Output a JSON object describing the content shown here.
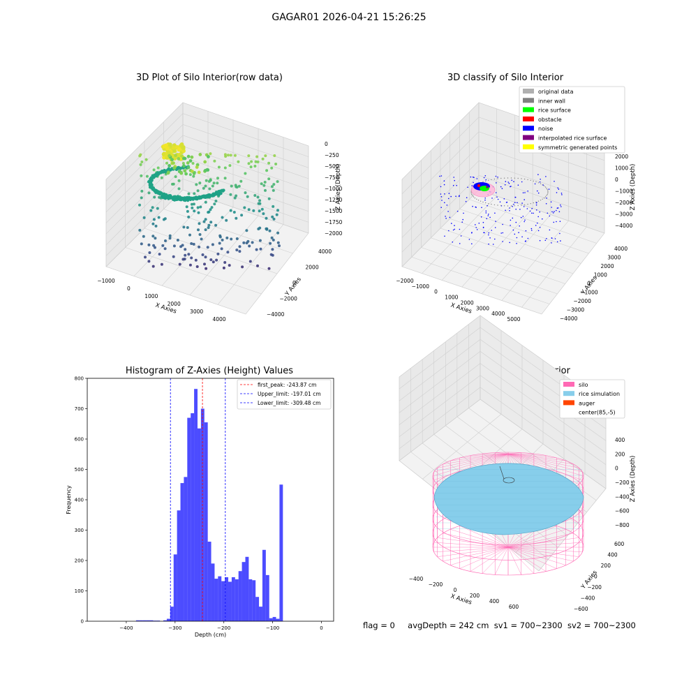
{
  "figure": {
    "suptitle": "GAGAR01 2026-04-21 15:26:25"
  },
  "panels": {
    "raw": {
      "title": "3D Plot of Silo Interior(row data)",
      "xlabel": "X Axies",
      "ylabel": "Y Axies",
      "zlabel": "Z Axies (Depth)",
      "xticks": [
        "−1000",
        "0",
        "1000",
        "2000",
        "3000",
        "4000"
      ],
      "yticks": [
        "−4000",
        "−2000",
        "0",
        "2000",
        "4000"
      ],
      "zticks": [
        "0",
        "−250",
        "−500",
        "−750",
        "−1000",
        "−1250",
        "−1500",
        "−1750",
        "−2000"
      ]
    },
    "classify": {
      "title": "3D classify of Silo Interior",
      "xlabel": "X Axies",
      "ylabel": "Y Axies",
      "zlabel": "Z Axies (Depth)",
      "xticks": [
        "−2000",
        "−1000",
        "0",
        "1000",
        "2000",
        "3000",
        "4000",
        "5000"
      ],
      "yticks": [
        "−4000",
        "−3000",
        "−2000",
        "−1000",
        "0",
        "1000",
        "2000",
        "3000",
        "4000"
      ],
      "zticks": [
        "2000",
        "1000",
        "0",
        "−1000",
        "−2000",
        "−3000",
        "−4000"
      ],
      "legend": [
        {
          "label": "original data",
          "color": "#b0b0b0"
        },
        {
          "label": "inner wall",
          "color": "#808080"
        },
        {
          "label": "rice surface",
          "color": "#00ff00"
        },
        {
          "label": "obstacle",
          "color": "#ff0000"
        },
        {
          "label": "noise",
          "color": "#0000ff"
        },
        {
          "label": "interpolated rice surface",
          "color": "#800080"
        },
        {
          "label": "symmetric generated points",
          "color": "#ffff00"
        }
      ]
    },
    "simulation": {
      "title": "3D simulation of Silo Interior",
      "xlabel": "X Axies",
      "ylabel": "Y Axies",
      "zlabel": "Z Axies (Depth)",
      "xticks": [
        "−400",
        "−200",
        "0",
        "200",
        "400",
        "600"
      ],
      "yticks": [
        "−600",
        "−400",
        "−200",
        "0",
        "200",
        "400",
        "600"
      ],
      "zticks": [
        "400",
        "200",
        "0",
        "−200",
        "−400",
        "−600",
        "−800"
      ],
      "legend": [
        {
          "label": "silo",
          "color": "#ff69b4"
        },
        {
          "label": "rice simulation",
          "color": "#87ceeb"
        },
        {
          "label": "auger",
          "color": "#ff4500"
        },
        {
          "label": "center(85,-5)",
          "color": ""
        }
      ]
    }
  },
  "status": {
    "flag": "flag = 0",
    "avg_depth": "avgDepth = 242 cm",
    "sv1": "sv1 = 700~2300",
    "sv2": "sv2 = 700~2300"
  },
  "chart_data": [
    {
      "type": "scatter",
      "title": "3D Plot of Silo Interior(row data)",
      "xlabel": "X Axies",
      "ylabel": "Y Axies",
      "zlabel": "Z Axies (Depth)",
      "xlim": [
        -1000,
        4000
      ],
      "ylim": [
        -4000,
        4000
      ],
      "zlim": [
        -2000,
        0
      ],
      "grid": true,
      "colormap": "viridis"
    },
    {
      "type": "scatter",
      "title": "3D classify of Silo Interior",
      "xlabel": "X Axies",
      "ylabel": "Y Axies",
      "zlabel": "Z Axies (Depth)",
      "xlim": [
        -2000,
        5000
      ],
      "ylim": [
        -4000,
        4000
      ],
      "zlim": [
        -4000,
        2000
      ],
      "grid": true,
      "legend_position": "top-right",
      "series": [
        {
          "name": "original data",
          "color": "#b0b0b0"
        },
        {
          "name": "inner wall",
          "color": "#808080"
        },
        {
          "name": "rice surface",
          "color": "#00ff00"
        },
        {
          "name": "obstacle",
          "color": "#ff0000"
        },
        {
          "name": "noise",
          "color": "#0000ff"
        },
        {
          "name": "interpolated rice surface",
          "color": "#800080"
        },
        {
          "name": "symmetric generated points",
          "color": "#ffff00"
        }
      ]
    },
    {
      "type": "bar",
      "title": "Histogram of Z-Axies (Height) Values",
      "xlabel": "Depth (cm)",
      "ylabel": "Frequency",
      "xlim": [
        -480,
        25
      ],
      "ylim": [
        0,
        800
      ],
      "xticks": [
        -400,
        -300,
        -200,
        -100,
        0
      ],
      "yticks": [
        0,
        100,
        200,
        300,
        400,
        500,
        600,
        700,
        800
      ],
      "bar_color": "#0000ff",
      "bin_width": 7,
      "bins": [
        {
          "x": -380,
          "v": 3
        },
        {
          "x": -373,
          "v": 3
        },
        {
          "x": -366,
          "v": 3
        },
        {
          "x": -359,
          "v": 3
        },
        {
          "x": -352,
          "v": 3
        },
        {
          "x": -345,
          "v": 2
        },
        {
          "x": -338,
          "v": 2
        },
        {
          "x": -324,
          "v": 3
        },
        {
          "x": -317,
          "v": 8
        },
        {
          "x": -310,
          "v": 48
        },
        {
          "x": -303,
          "v": 220
        },
        {
          "x": -296,
          "v": 365
        },
        {
          "x": -289,
          "v": 455
        },
        {
          "x": -282,
          "v": 475
        },
        {
          "x": -275,
          "v": 670
        },
        {
          "x": -268,
          "v": 685
        },
        {
          "x": -261,
          "v": 765
        },
        {
          "x": -254,
          "v": 635
        },
        {
          "x": -247,
          "v": 700
        },
        {
          "x": -240,
          "v": 655
        },
        {
          "x": -233,
          "v": 262
        },
        {
          "x": -226,
          "v": 190
        },
        {
          "x": -219,
          "v": 140
        },
        {
          "x": -212,
          "v": 148
        },
        {
          "x": -205,
          "v": 132
        },
        {
          "x": -198,
          "v": 145
        },
        {
          "x": -191,
          "v": 130
        },
        {
          "x": -184,
          "v": 145
        },
        {
          "x": -177,
          "v": 138
        },
        {
          "x": -170,
          "v": 165
        },
        {
          "x": -163,
          "v": 195
        },
        {
          "x": -156,
          "v": 212
        },
        {
          "x": -149,
          "v": 138
        },
        {
          "x": -142,
          "v": 135
        },
        {
          "x": -135,
          "v": 80
        },
        {
          "x": -128,
          "v": 48
        },
        {
          "x": -121,
          "v": 235
        },
        {
          "x": -114,
          "v": 152
        },
        {
          "x": -107,
          "v": 10
        },
        {
          "x": -100,
          "v": 14
        },
        {
          "x": -93,
          "v": 8
        },
        {
          "x": -86,
          "v": 450
        }
      ],
      "vlines": [
        {
          "label": "first_peak: -243.87 cm",
          "x": -243.87,
          "color": "#ff0000"
        },
        {
          "label": "Upper_limit: -197.01 cm",
          "x": -197.01,
          "color": "#0000ff"
        },
        {
          "label": "Lower_limit: -309.48 cm",
          "x": -309.48,
          "color": "#0000ff"
        }
      ],
      "legend_position": "top-right"
    },
    {
      "type": "surface",
      "title": "3D simulation of Silo Interior",
      "xlabel": "X Axies",
      "ylabel": "Y Axies",
      "zlabel": "Z Axies (Depth)",
      "xlim": [
        -500,
        700
      ],
      "ylim": [
        -650,
        650
      ],
      "zlim": [
        -900,
        450
      ],
      "grid": true,
      "legend_position": "top-right",
      "series": [
        {
          "name": "silo",
          "color": "#ff69b4"
        },
        {
          "name": "rice simulation",
          "color": "#87ceeb"
        },
        {
          "name": "auger",
          "color": "#ff4500"
        },
        {
          "name": "center(85,-5)",
          "color": ""
        }
      ]
    }
  ]
}
